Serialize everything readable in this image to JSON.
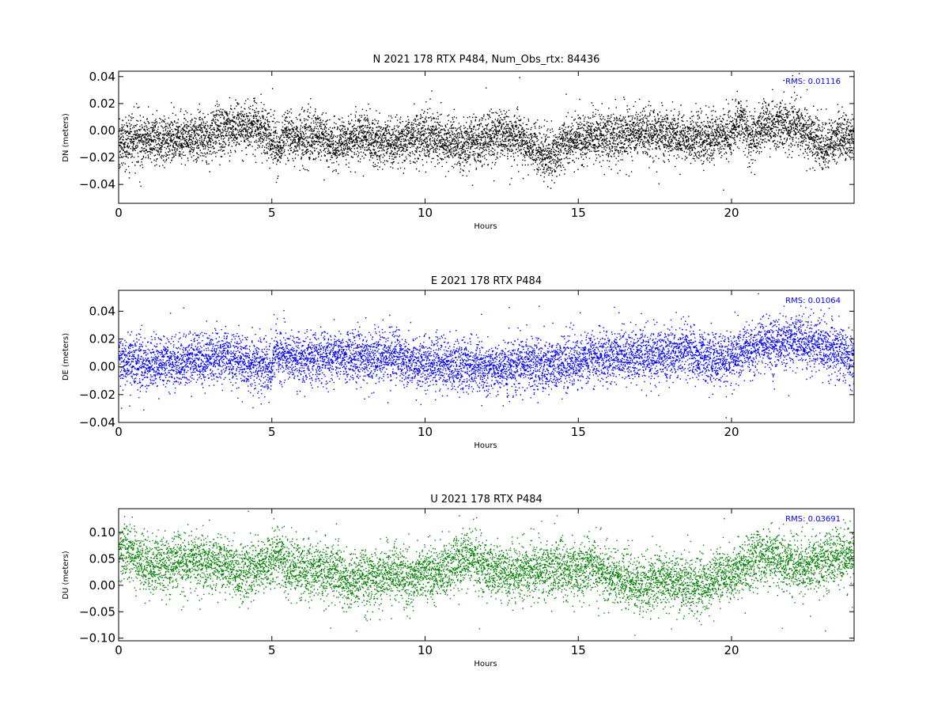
{
  "chart_data": [
    {
      "type": "scatter",
      "title": "N 2021 178 RTX  P484, Num_Obs_rtx: 84436",
      "xlabel": "Hours",
      "ylabel": "DN (meters)",
      "xlim": [
        0,
        24
      ],
      "ylim": [
        -0.054,
        0.044
      ],
      "xticks": [
        0,
        5,
        10,
        15,
        20
      ],
      "yticks": [
        -0.04,
        -0.02,
        0.0,
        0.02,
        0.04
      ],
      "ytick_labels": [
        "−0.04",
        "−0.02",
        "0.00",
        "0.02",
        "0.04"
      ],
      "color": "#000000",
      "annotation": "RMS:  0.01116",
      "annotation_color": "#0000ff",
      "grid": false,
      "series": [
        {
          "points": 84436,
          "trend_x": [
            0,
            1,
            2,
            3,
            3.5,
            4,
            4.5,
            5,
            5.2,
            5.5,
            6,
            6.5,
            7,
            7.5,
            8,
            8.5,
            9,
            9.5,
            10,
            10.5,
            11,
            11.5,
            12,
            12.5,
            13,
            13.5,
            14,
            14.5,
            15,
            15.5,
            16,
            16.5,
            17,
            17.5,
            18,
            18.5,
            19,
            19.5,
            20,
            20.3,
            20.6,
            21,
            21.5,
            22,
            22.5,
            23,
            23.5,
            24
          ],
          "trend_y": [
            -0.01,
            -0.006,
            -0.005,
            -0.004,
            0.002,
            0.003,
            0.002,
            -0.006,
            -0.012,
            -0.002,
            -0.006,
            -0.004,
            -0.01,
            -0.006,
            -0.005,
            -0.01,
            -0.007,
            -0.006,
            -0.004,
            -0.006,
            -0.01,
            -0.008,
            -0.005,
            -0.003,
            -0.004,
            -0.012,
            -0.018,
            -0.01,
            -0.006,
            -0.004,
            -0.004,
            -0.002,
            -0.001,
            -0.002,
            -0.003,
            -0.005,
            -0.006,
            -0.004,
            -0.002,
            0.008,
            -0.006,
            0.004,
            0.006,
            0.004,
            -0.002,
            -0.012,
            -0.004,
            -0.006
          ],
          "spread": 0.009
        }
      ]
    },
    {
      "type": "scatter",
      "title": "E 2021 178 RTX  P484",
      "xlabel": "Hours",
      "ylabel": "DE (meters)",
      "xlim": [
        0,
        24
      ],
      "ylim": [
        -0.04,
        0.055
      ],
      "xticks": [
        0,
        5,
        10,
        15,
        20
      ],
      "yticks": [
        -0.04,
        -0.02,
        0.0,
        0.02,
        0.04
      ],
      "ytick_labels": [
        "−0.04",
        "−0.02",
        "0.00",
        "0.02",
        "0.04"
      ],
      "color": "#0000ff",
      "annotation": "RMS:  0.01064",
      "annotation_color": "#0000ff",
      "grid": false,
      "series": [
        {
          "trend_x": [
            0,
            0.5,
            1,
            1.5,
            2,
            2.5,
            3,
            3.5,
            4,
            4.5,
            5,
            5.1,
            5.5,
            6,
            7,
            8,
            9,
            9.5,
            10,
            11,
            12,
            13,
            14,
            14.5,
            15,
            15.5,
            16,
            17,
            18,
            18.5,
            19,
            19.5,
            20,
            20.5,
            21,
            21.5,
            22,
            22.5,
            23,
            23.5,
            24
          ],
          "trend_y": [
            0.006,
            0.004,
            0.002,
            0.004,
            0.003,
            0.006,
            0.008,
            0.008,
            0.004,
            0.002,
            0.0,
            0.012,
            0.008,
            0.006,
            0.008,
            0.008,
            0.008,
            0.004,
            0.002,
            0.002,
            0.0,
            0.002,
            0.001,
            0.003,
            0.006,
            0.008,
            0.008,
            0.008,
            0.01,
            0.012,
            0.008,
            0.006,
            0.008,
            0.012,
            0.016,
            0.018,
            0.02,
            0.018,
            0.016,
            0.012,
            0.004
          ],
          "spread": 0.009
        }
      ]
    },
    {
      "type": "scatter",
      "title": "U 2021 178 RTX  P484",
      "xlabel": "Hours",
      "ylabel": "DU (meters)",
      "xlim": [
        0,
        24
      ],
      "ylim": [
        -0.105,
        0.145
      ],
      "xticks": [
        0,
        5,
        10,
        15,
        20
      ],
      "yticks": [
        -0.1,
        -0.05,
        0.0,
        0.05,
        0.1
      ],
      "ytick_labels": [
        "−0.10",
        "−0.05",
        "0.00",
        "0.05",
        "0.10"
      ],
      "color": "#008000",
      "annotation": "RMS:  0.03691",
      "annotation_color": "#0000ff",
      "grid": false,
      "series": [
        {
          "trend_x": [
            0,
            0.3,
            0.6,
            1,
            1.5,
            2,
            2.5,
            3,
            3.5,
            4,
            4.5,
            5,
            5.2,
            5.5,
            6,
            6.5,
            7,
            7.5,
            8,
            8.5,
            9,
            9.5,
            10,
            10.5,
            11,
            11.5,
            12,
            12.5,
            13,
            13.5,
            14,
            14.5,
            15,
            15.5,
            16,
            16.5,
            17,
            17.5,
            18,
            18.5,
            19,
            19.5,
            20,
            20.5,
            21,
            21.5,
            22,
            22.5,
            23,
            23.5,
            24
          ],
          "trend_y": [
            0.06,
            0.07,
            0.055,
            0.035,
            0.04,
            0.045,
            0.048,
            0.045,
            0.04,
            0.025,
            0.035,
            0.045,
            0.06,
            0.035,
            0.03,
            0.03,
            0.03,
            0.005,
            0.02,
            0.015,
            0.03,
            0.015,
            0.025,
            0.03,
            0.04,
            0.055,
            0.03,
            0.025,
            0.025,
            0.03,
            0.035,
            0.03,
            0.03,
            0.04,
            0.02,
            0.01,
            0.0,
            0.01,
            0.01,
            0.005,
            0.0,
            0.02,
            0.02,
            0.04,
            0.06,
            0.05,
            0.04,
            0.04,
            0.045,
            0.055,
            0.055
          ],
          "spread": 0.026
        }
      ]
    }
  ]
}
